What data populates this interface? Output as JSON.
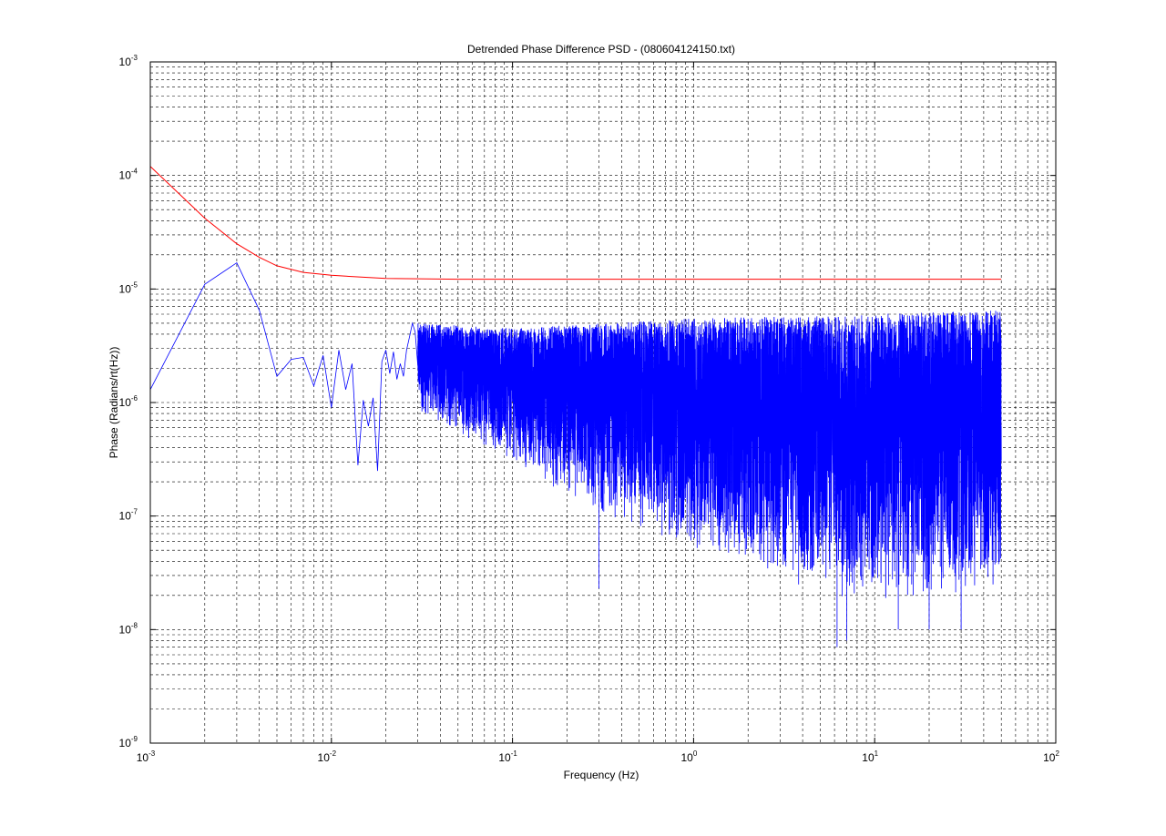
{
  "chart_data": {
    "type": "line",
    "title": "Detrended Phase Difference PSD - (080604124150.txt)",
    "xlabel": "Frequency (Hz)",
    "ylabel": "Phase (Radians/rt(Hz))",
    "xscale": "log",
    "yscale": "log",
    "xlim": [
      0.001,
      100
    ],
    "ylim": [
      1e-09,
      0.001
    ],
    "grid": true,
    "grid_style": "dashed",
    "legend": "none",
    "x_ticks": [
      {
        "value": 0.001,
        "base": "10",
        "exp": "-3"
      },
      {
        "value": 0.01,
        "base": "10",
        "exp": "-2"
      },
      {
        "value": 0.1,
        "base": "10",
        "exp": "-1"
      },
      {
        "value": 1,
        "base": "10",
        "exp": "0"
      },
      {
        "value": 10,
        "base": "10",
        "exp": "1"
      },
      {
        "value": 100,
        "base": "10",
        "exp": "2"
      }
    ],
    "y_ticks": [
      {
        "value": 1e-09,
        "base": "10",
        "exp": "-9"
      },
      {
        "value": 1e-08,
        "base": "10",
        "exp": "-8"
      },
      {
        "value": 1e-07,
        "base": "10",
        "exp": "-7"
      },
      {
        "value": 1e-06,
        "base": "10",
        "exp": "-6"
      },
      {
        "value": 1e-05,
        "base": "10",
        "exp": "-5"
      },
      {
        "value": 0.0001,
        "base": "10",
        "exp": "-4"
      },
      {
        "value": 0.001,
        "base": "10",
        "exp": "-3"
      }
    ],
    "series": [
      {
        "color": "#0000ff",
        "x": [
          0.001,
          0.002,
          0.003,
          0.004,
          0.005,
          0.006,
          0.007,
          0.008,
          0.009,
          0.01,
          0.011,
          0.012,
          0.013,
          0.014,
          0.015,
          0.016,
          0.017,
          0.018,
          0.019,
          0.02,
          0.021,
          0.022,
          0.023,
          0.024,
          0.025,
          0.026,
          0.027,
          0.028,
          0.029,
          0.03
        ],
        "y": [
          1.3e-06,
          1.1e-05,
          1.7e-05,
          6.5e-06,
          1.7e-06,
          2.4e-06,
          2.5e-06,
          1.4e-06,
          2.6e-06,
          9e-07,
          2.9e-06,
          1.3e-06,
          2.2e-06,
          2.8e-07,
          1.05e-06,
          6.2e-07,
          1.1e-06,
          2.5e-07,
          2.3e-06,
          2.9e-06,
          1.8e-06,
          2.8e-06,
          1.6e-06,
          2.2e-06,
          1.7e-06,
          2.9e-06,
          3.8e-06,
          5e-06,
          4.2e-06,
          2.1e-06
        ],
        "dense_continuation": {
          "x_range": [
            0.03,
            50
          ],
          "note_envelope_upper": [
            [
              0.03,
              5e-06
            ],
            [
              0.1,
              4.5e-06
            ],
            [
              1,
              5.5e-06
            ],
            [
              10,
              6e-06
            ],
            [
              50,
              6.5e-06
            ]
          ],
          "note_envelope_lower": [
            [
              0.03,
              8e-07
            ],
            [
              0.1,
              3e-07
            ],
            [
              0.3,
              1e-07
            ],
            [
              1,
              5e-08
            ],
            [
              3,
              3e-08
            ],
            [
              10,
              1.5e-08
            ],
            [
              50,
              2.5e-08
            ]
          ],
          "deep_dips": [
            [
              0.3,
              2.3e-08
            ],
            [
              3.8,
              2.5e-08
            ],
            [
              6.2,
              7e-09
            ],
            [
              7.0,
              8e-09
            ],
            [
              13.5,
              1e-08
            ],
            [
              16,
              2.5e-08
            ],
            [
              20,
              1e-08
            ],
            [
              30,
              1e-08
            ],
            [
              45,
              2.5e-08
            ]
          ]
        }
      },
      {
        "color": "#ff0000",
        "x": [
          0.001,
          0.0015,
          0.002,
          0.003,
          0.004,
          0.005,
          0.007,
          0.01,
          0.015,
          0.02,
          0.05,
          0.1,
          1,
          10,
          50
        ],
        "y": [
          0.00012,
          6.5e-05,
          4.2e-05,
          2.5e-05,
          1.9e-05,
          1.6e-05,
          1.4e-05,
          1.32e-05,
          1.27e-05,
          1.24e-05,
          1.22e-05,
          1.22e-05,
          1.22e-05,
          1.22e-05,
          1.22e-05
        ]
      }
    ]
  }
}
